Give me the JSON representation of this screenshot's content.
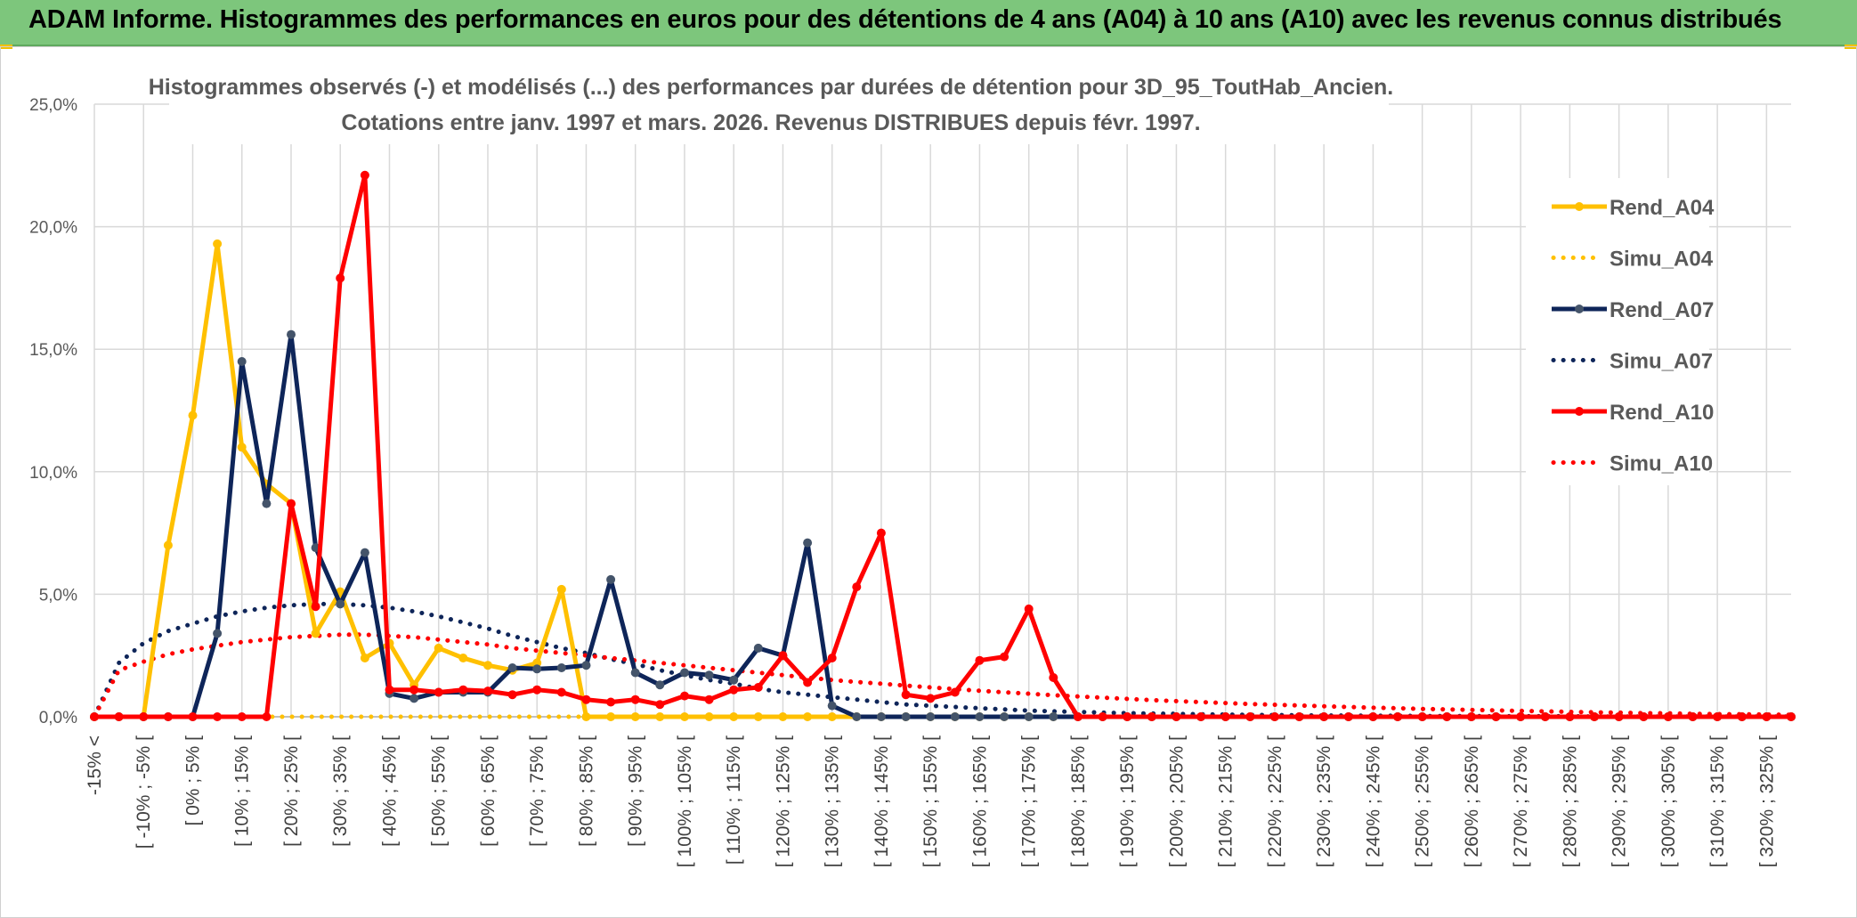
{
  "banner": {
    "title": "ADAM Informe. Histogrammes des performances en euros pour des détentions de 4 ans (A04) à 10 ans (A10) avec les revenus connus distribués"
  },
  "colors": {
    "banner_bg": "#7dc67c",
    "A04": "#ffc000",
    "A07": "#0e2559",
    "A10": "#ff0000",
    "grid": "#d9d9d9"
  },
  "chart_data": {
    "type": "line",
    "title_lines": [
      "Histogrammes observés (-) et modélisés (...) des performances par durées de détention pour 3D_95_ToutHab_Ancien.",
      "Cotations entre janv. 1997 et mars. 2026. Revenus DISTRIBUES depuis févr. 1997."
    ],
    "ylim": [
      0,
      25
    ],
    "y_ticks": [
      "0,0%",
      "5,0%",
      "10,0%",
      "15,0%",
      "20,0%",
      "25,0%"
    ],
    "grid": true,
    "legend_position": "right",
    "x_tick_labels": [
      "-15% <",
      "[ -10% ; -5% [",
      "[ 0% ; 5% [",
      "[ 10% ; 15% [",
      "[ 20% ; 25% [",
      "[ 30% ; 35% [",
      "[ 40% ; 45% [",
      "[ 50% ; 55% [",
      "[ 60% ; 65% [",
      "[ 70% ; 75% [",
      "[ 80% ; 85% [",
      "[ 90% ; 95% [",
      "[ 100% ; 105% [",
      "[ 110% ; 115% [",
      "[ 120% ; 125% [",
      "[ 130% ; 135% [",
      "[ 140% ; 145% [",
      "[ 150% ; 155% [",
      "[ 160% ; 165% [",
      "[ 170% ; 175% [",
      "[ 180% ; 185% [",
      "[ 190% ; 195% [",
      "[ 200% ; 205% [",
      "[ 210% ; 215% [",
      "[ 220% ; 225% [",
      "[ 230% ; 235% [",
      "[ 240% ; 245% [",
      "[ 250% ; 255% [",
      "[ 260% ; 265% [",
      "[ 270% ; 275% [",
      "[ 280% ; 285% [",
      "[ 290% ; 295% [",
      "[ 300% ; 305% [",
      "[ 310% ; 315% [",
      "[ 320% ; 325% ["
    ],
    "series": [
      {
        "name": "Rend_A04",
        "style": "solid",
        "color": "#ffc000",
        "values": [
          0,
          0,
          0,
          7.0,
          12.3,
          19.3,
          11.0,
          9.5,
          8.7,
          3.4,
          5.1,
          2.4,
          3.0,
          1.3,
          2.8,
          2.4,
          2.1,
          1.9,
          2.2,
          5.2,
          0,
          0,
          0,
          0,
          0,
          0,
          0,
          0,
          0,
          0,
          0,
          0,
          0,
          0,
          0,
          0,
          0,
          0,
          0,
          0,
          0,
          0,
          0,
          0,
          0,
          0,
          0,
          0,
          0,
          0,
          0,
          0,
          0,
          0,
          0,
          0,
          0,
          0,
          0,
          0,
          0,
          0,
          0,
          0,
          0,
          0,
          0,
          0,
          0,
          0
        ]
      },
      {
        "name": "Simu_A04",
        "style": "dotted",
        "color": "#ffc000",
        "values": [
          0,
          0,
          0,
          0,
          0,
          0,
          0,
          0,
          0,
          0,
          0,
          0,
          0,
          0,
          0,
          0,
          0,
          0,
          0,
          0,
          0,
          0,
          0,
          0,
          0,
          0,
          0,
          0,
          0,
          0,
          0,
          0,
          0,
          0,
          0,
          0,
          0,
          0,
          0,
          0,
          0,
          0,
          0,
          0,
          0,
          0,
          0,
          0,
          0,
          0,
          0,
          0,
          0,
          0,
          0,
          0,
          0,
          0,
          0,
          0,
          0,
          0,
          0,
          0,
          0,
          0,
          0,
          0,
          0,
          0
        ]
      },
      {
        "name": "Rend_A07",
        "style": "solid",
        "color": "#0e2559",
        "values": [
          0,
          0,
          0,
          0,
          0,
          3.4,
          14.5,
          8.7,
          15.6,
          6.9,
          4.6,
          6.7,
          0.95,
          0.75,
          1.0,
          1.0,
          1.0,
          2.0,
          1.95,
          2.0,
          2.1,
          5.6,
          1.8,
          1.3,
          1.8,
          1.7,
          1.5,
          2.8,
          2.5,
          7.1,
          0.45,
          0,
          0,
          0,
          0,
          0,
          0,
          0,
          0,
          0,
          0,
          0,
          0,
          0,
          0,
          0,
          0,
          0,
          0,
          0,
          0,
          0,
          0,
          0,
          0,
          0,
          0,
          0,
          0,
          0,
          0,
          0,
          0,
          0,
          0,
          0,
          0,
          0,
          0,
          0
        ]
      },
      {
        "name": "Simu_A07",
        "style": "dotted",
        "color": "#0e2559",
        "values": [
          0,
          2.2,
          3.0,
          3.5,
          3.8,
          4.1,
          4.3,
          4.45,
          4.55,
          4.6,
          4.6,
          4.55,
          4.45,
          4.3,
          4.1,
          3.85,
          3.6,
          3.3,
          3.05,
          2.8,
          2.6,
          2.35,
          2.15,
          1.9,
          1.7,
          1.5,
          1.35,
          1.15,
          1.0,
          0.9,
          0.8,
          0.7,
          0.6,
          0.5,
          0.45,
          0.4,
          0.35,
          0.3,
          0.25,
          0.22,
          0.2,
          0.17,
          0.15,
          0.13,
          0.12,
          0.1,
          0.09,
          0.08,
          0.07,
          0.06,
          0.05,
          0.05,
          0.04,
          0.04,
          0.03,
          0.03,
          0.03,
          0.02,
          0.02,
          0.02,
          0.02,
          0.01,
          0.01,
          0.01,
          0.01,
          0.01,
          0.01,
          0.01,
          0.01,
          0.01
        ]
      },
      {
        "name": "Rend_A10",
        "style": "solid",
        "color": "#ff0000",
        "values": [
          0,
          0,
          0,
          0,
          0,
          0,
          0,
          0,
          8.7,
          4.5,
          17.9,
          22.1,
          1.1,
          1.1,
          1.0,
          1.1,
          1.05,
          0.9,
          1.1,
          1.0,
          0.7,
          0.6,
          0.7,
          0.5,
          0.85,
          0.7,
          1.1,
          1.2,
          2.5,
          1.4,
          2.4,
          5.3,
          7.5,
          0.9,
          0.75,
          1.0,
          2.3,
          2.45,
          4.4,
          1.6,
          0,
          0,
          0,
          0,
          0,
          0,
          0,
          0,
          0,
          0,
          0,
          0,
          0,
          0,
          0,
          0,
          0,
          0,
          0,
          0,
          0,
          0,
          0,
          0,
          0,
          0,
          0,
          0,
          0,
          0
        ]
      },
      {
        "name": "Simu_A10",
        "style": "dotted",
        "color": "#ff0000",
        "values": [
          0,
          1.9,
          2.25,
          2.55,
          2.75,
          2.9,
          3.05,
          3.15,
          3.25,
          3.3,
          3.35,
          3.35,
          3.3,
          3.25,
          3.15,
          3.05,
          2.95,
          2.8,
          2.7,
          2.6,
          2.5,
          2.4,
          2.3,
          2.2,
          2.1,
          2.0,
          1.9,
          1.8,
          1.7,
          1.6,
          1.5,
          1.42,
          1.35,
          1.27,
          1.2,
          1.13,
          1.06,
          1.0,
          0.94,
          0.88,
          0.83,
          0.78,
          0.73,
          0.68,
          0.64,
          0.6,
          0.56,
          0.52,
          0.49,
          0.46,
          0.43,
          0.4,
          0.37,
          0.35,
          0.32,
          0.3,
          0.28,
          0.26,
          0.24,
          0.22,
          0.2,
          0.18,
          0.17,
          0.15,
          0.14,
          0.12,
          0.11,
          0.1,
          0.09,
          0.08
        ]
      }
    ]
  }
}
